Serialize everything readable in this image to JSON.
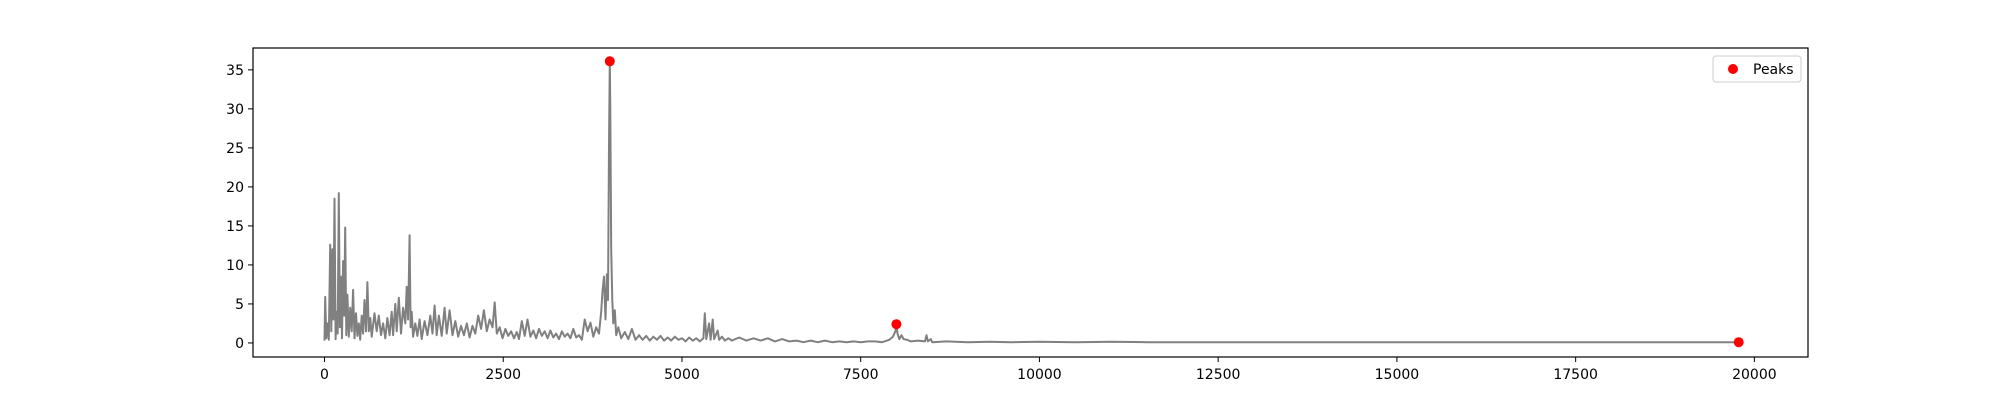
{
  "chart_data": {
    "type": "line",
    "title": "",
    "xlabel": "",
    "ylabel": "",
    "xlim": [
      -1000,
      20750
    ],
    "ylim": [
      -1.8,
      37.8
    ],
    "xticks": [
      0,
      2500,
      5000,
      7500,
      10000,
      12500,
      15000,
      17500,
      20000
    ],
    "yticks": [
      0,
      5,
      10,
      15,
      20,
      25,
      30,
      35
    ],
    "grid": false,
    "legend": {
      "placement": "top-right",
      "entries": [
        "Peaks"
      ]
    },
    "series": [
      {
        "kind": "line",
        "color": "#808080",
        "points": [
          [
            0,
            0.3
          ],
          [
            10,
            5.9
          ],
          [
            25,
            0.6
          ],
          [
            45,
            2.5
          ],
          [
            60,
            0.4
          ],
          [
            80,
            12.6
          ],
          [
            95,
            1.5
          ],
          [
            110,
            12.0
          ],
          [
            125,
            3.0
          ],
          [
            140,
            18.5
          ],
          [
            155,
            0.5
          ],
          [
            170,
            4.0
          ],
          [
            185,
            1.2
          ],
          [
            200,
            19.2
          ],
          [
            215,
            2.0
          ],
          [
            230,
            8.5
          ],
          [
            245,
            0.6
          ],
          [
            260,
            10.5
          ],
          [
            275,
            3.5
          ],
          [
            290,
            14.8
          ],
          [
            305,
            1.0
          ],
          [
            320,
            6.2
          ],
          [
            340,
            0.8
          ],
          [
            360,
            4.5
          ],
          [
            380,
            1.5
          ],
          [
            400,
            6.8
          ],
          [
            420,
            0.6
          ],
          [
            440,
            3.8
          ],
          [
            460,
            0.9
          ],
          [
            480,
            2.5
          ],
          [
            500,
            0.4
          ],
          [
            520,
            3.5
          ],
          [
            540,
            1.2
          ],
          [
            560,
            5.5
          ],
          [
            580,
            1.5
          ],
          [
            600,
            7.8
          ],
          [
            620,
            1.5
          ],
          [
            640,
            3.2
          ],
          [
            660,
            0.8
          ],
          [
            700,
            3.8
          ],
          [
            730,
            1.5
          ],
          [
            760,
            3.5
          ],
          [
            790,
            1.0
          ],
          [
            820,
            2.5
          ],
          [
            850,
            0.6
          ],
          [
            880,
            3.2
          ],
          [
            910,
            1.0
          ],
          [
            940,
            4.0
          ],
          [
            960,
            1.0
          ],
          [
            990,
            5.0
          ],
          [
            1010,
            1.5
          ],
          [
            1040,
            5.8
          ],
          [
            1070,
            1.2
          ],
          [
            1100,
            4.5
          ],
          [
            1130,
            2.5
          ],
          [
            1150,
            7.2
          ],
          [
            1170,
            3.0
          ],
          [
            1190,
            13.8
          ],
          [
            1205,
            2.0
          ],
          [
            1220,
            4.0
          ],
          [
            1240,
            0.8
          ],
          [
            1270,
            2.5
          ],
          [
            1300,
            0.9
          ],
          [
            1330,
            3.0
          ],
          [
            1360,
            0.5
          ],
          [
            1400,
            2.8
          ],
          [
            1440,
            1.0
          ],
          [
            1480,
            3.5
          ],
          [
            1510,
            1.2
          ],
          [
            1540,
            4.8
          ],
          [
            1570,
            1.0
          ],
          [
            1600,
            3.5
          ],
          [
            1640,
            0.9
          ],
          [
            1680,
            4.5
          ],
          [
            1710,
            1.2
          ],
          [
            1750,
            4.2
          ],
          [
            1790,
            1.0
          ],
          [
            1830,
            2.8
          ],
          [
            1870,
            0.8
          ],
          [
            1910,
            2.2
          ],
          [
            1950,
            1.0
          ],
          [
            1990,
            2.5
          ],
          [
            2030,
            0.7
          ],
          [
            2070,
            2.2
          ],
          [
            2110,
            1.2
          ],
          [
            2150,
            3.5
          ],
          [
            2190,
            1.8
          ],
          [
            2230,
            4.2
          ],
          [
            2270,
            1.5
          ],
          [
            2310,
            3.0
          ],
          [
            2350,
            2.0
          ],
          [
            2380,
            5.2
          ],
          [
            2410,
            1.2
          ],
          [
            2450,
            2.0
          ],
          [
            2490,
            0.6
          ],
          [
            2530,
            1.8
          ],
          [
            2570,
            0.9
          ],
          [
            2610,
            1.5
          ],
          [
            2650,
            0.6
          ],
          [
            2690,
            1.4
          ],
          [
            2720,
            0.5
          ],
          [
            2760,
            2.8
          ],
          [
            2800,
            0.9
          ],
          [
            2840,
            3.0
          ],
          [
            2880,
            0.8
          ],
          [
            2920,
            1.6
          ],
          [
            2960,
            0.6
          ],
          [
            3000,
            1.8
          ],
          [
            3040,
            0.9
          ],
          [
            3080,
            1.5
          ],
          [
            3120,
            0.6
          ],
          [
            3160,
            1.6
          ],
          [
            3200,
            0.7
          ],
          [
            3240,
            1.2
          ],
          [
            3280,
            0.5
          ],
          [
            3320,
            1.5
          ],
          [
            3360,
            0.8
          ],
          [
            3400,
            1.2
          ],
          [
            3440,
            0.6
          ],
          [
            3480,
            1.8
          ],
          [
            3520,
            0.7
          ],
          [
            3560,
            1.0
          ],
          [
            3600,
            0.4
          ],
          [
            3640,
            3.0
          ],
          [
            3680,
            1.5
          ],
          [
            3720,
            2.6
          ],
          [
            3760,
            0.8
          ],
          [
            3800,
            2.0
          ],
          [
            3840,
            1.2
          ],
          [
            3870,
            4.0
          ],
          [
            3890,
            6.8
          ],
          [
            3910,
            8.5
          ],
          [
            3930,
            3.0
          ],
          [
            3950,
            8.8
          ],
          [
            3965,
            5.5
          ],
          [
            3980,
            25.5
          ],
          [
            3990,
            36.1
          ],
          [
            3998,
            30.0
          ],
          [
            4010,
            12.0
          ],
          [
            4025,
            5.5
          ],
          [
            4040,
            2.5
          ],
          [
            4060,
            4.2
          ],
          [
            4080,
            1.0
          ],
          [
            4110,
            2.0
          ],
          [
            4150,
            0.6
          ],
          [
            4200,
            1.4
          ],
          [
            4250,
            0.5
          ],
          [
            4300,
            1.8
          ],
          [
            4350,
            0.4
          ],
          [
            4400,
            1.0
          ],
          [
            4450,
            0.4
          ],
          [
            4500,
            0.9
          ],
          [
            4550,
            0.3
          ],
          [
            4600,
            0.8
          ],
          [
            4650,
            0.4
          ],
          [
            4700,
            0.9
          ],
          [
            4750,
            0.3
          ],
          [
            4800,
            0.7
          ],
          [
            4850,
            0.3
          ],
          [
            4900,
            0.8
          ],
          [
            4950,
            0.4
          ],
          [
            5000,
            0.6
          ],
          [
            5050,
            0.2
          ],
          [
            5100,
            0.7
          ],
          [
            5150,
            0.3
          ],
          [
            5200,
            0.6
          ],
          [
            5250,
            0.2
          ],
          [
            5300,
            0.6
          ],
          [
            5320,
            3.8
          ],
          [
            5340,
            0.5
          ],
          [
            5380,
            2.5
          ],
          [
            5400,
            0.4
          ],
          [
            5430,
            3.0
          ],
          [
            5450,
            0.5
          ],
          [
            5500,
            1.6
          ],
          [
            5520,
            0.4
          ],
          [
            5560,
            0.8
          ],
          [
            5600,
            0.3
          ],
          [
            5650,
            0.6
          ],
          [
            5700,
            0.3
          ],
          [
            5800,
            0.7
          ],
          [
            5900,
            0.3
          ],
          [
            6000,
            0.6
          ],
          [
            6100,
            0.3
          ],
          [
            6200,
            0.6
          ],
          [
            6300,
            0.2
          ],
          [
            6400,
            0.5
          ],
          [
            6500,
            0.2
          ],
          [
            6600,
            0.3
          ],
          [
            6700,
            0.1
          ],
          [
            6800,
            0.3
          ],
          [
            6900,
            0.1
          ],
          [
            7000,
            0.3
          ],
          [
            7100,
            0.1
          ],
          [
            7200,
            0.2
          ],
          [
            7300,
            0.1
          ],
          [
            7400,
            0.2
          ],
          [
            7500,
            0.1
          ],
          [
            7600,
            0.2
          ],
          [
            7700,
            0.2
          ],
          [
            7800,
            0.1
          ],
          [
            7900,
            0.4
          ],
          [
            7950,
            0.8
          ],
          [
            7985,
            1.5
          ],
          [
            8000,
            2.4
          ],
          [
            8015,
            1.2
          ],
          [
            8040,
            0.5
          ],
          [
            8070,
            1.0
          ],
          [
            8100,
            0.5
          ],
          [
            8150,
            0.4
          ],
          [
            8200,
            0.2
          ],
          [
            8300,
            0.3
          ],
          [
            8400,
            0.2
          ],
          [
            8420,
            1.0
          ],
          [
            8440,
            0.2
          ],
          [
            8480,
            0.5
          ],
          [
            8500,
            0.1
          ],
          [
            8700,
            0.2
          ],
          [
            9000,
            0.1
          ],
          [
            9300,
            0.15
          ],
          [
            9600,
            0.1
          ],
          [
            10000,
            0.15
          ],
          [
            10500,
            0.1
          ],
          [
            11000,
            0.15
          ],
          [
            11500,
            0.1
          ],
          [
            12000,
            0.1
          ],
          [
            12500,
            0.1
          ],
          [
            13000,
            0.08
          ],
          [
            13500,
            0.1
          ],
          [
            14000,
            0.1
          ],
          [
            14500,
            0.1
          ],
          [
            15000,
            0.08
          ],
          [
            15500,
            0.1
          ],
          [
            16000,
            0.1
          ],
          [
            16500,
            0.08
          ],
          [
            17000,
            0.1
          ],
          [
            17500,
            0.08
          ],
          [
            18000,
            0.1
          ],
          [
            18500,
            0.08
          ],
          [
            19000,
            0.1
          ],
          [
            19500,
            0.08
          ],
          [
            19780,
            0.1
          ]
        ]
      },
      {
        "name": "Peaks",
        "kind": "scatter",
        "color": "#ff0000",
        "points": [
          [
            3990,
            36.1
          ],
          [
            8000,
            2.4
          ],
          [
            19780,
            0.1
          ]
        ]
      }
    ]
  }
}
